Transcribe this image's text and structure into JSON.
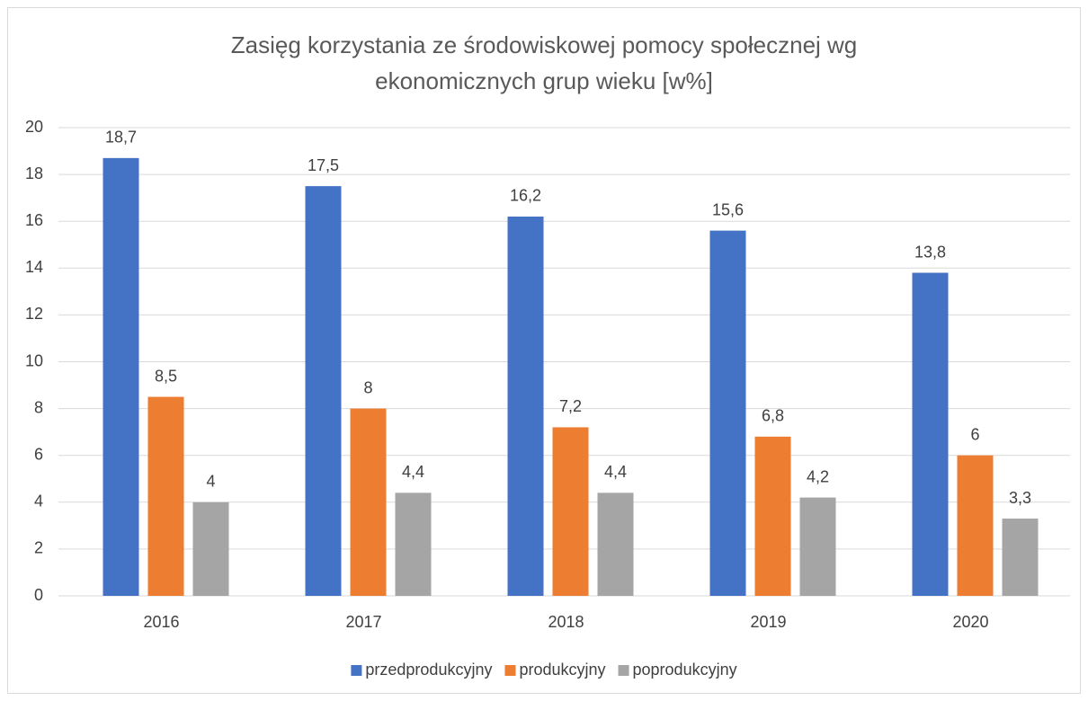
{
  "chart_data": {
    "type": "bar",
    "title": "Zasięg korzystania ze środowiskowej pomocy społecznej wg ekonomicznych grup wieku [w%]",
    "categories": [
      "2016",
      "2017",
      "2018",
      "2019",
      "2020"
    ],
    "series": [
      {
        "name": "przedprodukcyjny",
        "color": "#4472c4",
        "values": [
          18.7,
          17.5,
          16.2,
          15.6,
          13.8
        ],
        "value_labels": [
          "18,7",
          "17,5",
          "16,2",
          "15,6",
          "13,8"
        ]
      },
      {
        "name": "produkcyjny",
        "color": "#ed7d31",
        "values": [
          8.5,
          8,
          7.2,
          6.8,
          6
        ],
        "value_labels": [
          "8,5",
          "8",
          "7,2",
          "6,8",
          "6"
        ]
      },
      {
        "name": "poprodukcyjny",
        "color": "#a5a5a5",
        "values": [
          4,
          4.4,
          4.4,
          4.2,
          3.3
        ],
        "value_labels": [
          "4",
          "4,4",
          "4,4",
          "4,2",
          "3,3"
        ]
      }
    ],
    "ylim": [
      0,
      20
    ],
    "yticks": [
      0,
      2,
      4,
      6,
      8,
      10,
      12,
      14,
      16,
      18,
      20
    ],
    "grid": true,
    "legend": "bottom"
  }
}
